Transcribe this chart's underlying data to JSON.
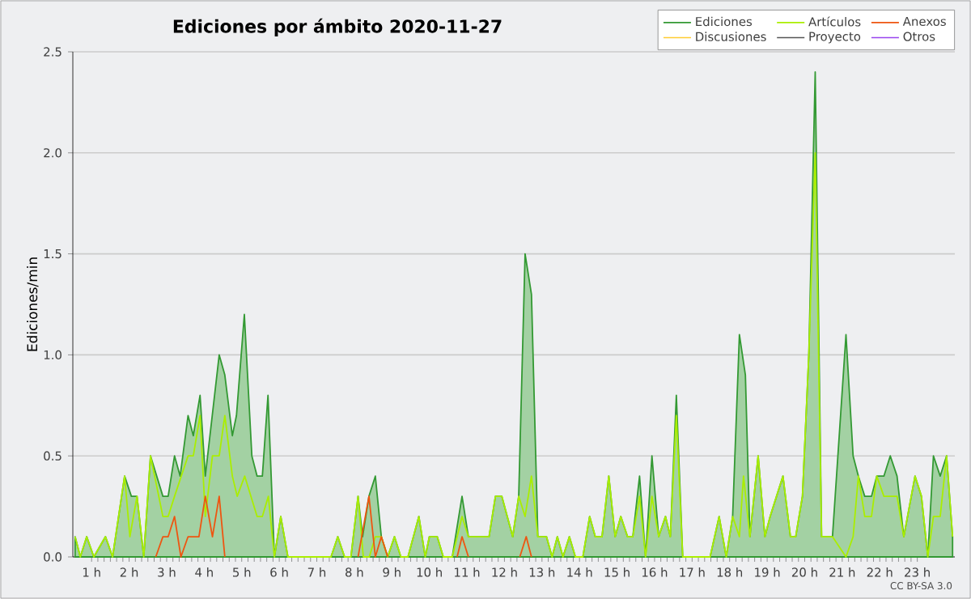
{
  "chart_data": {
    "type": "area",
    "title": "Ediciones por ámbito  2020-11-27",
    "ylabel": "Ediciones/min",
    "annotations": [
      "CC BY-SA 3.0"
    ],
    "xlim": [
      0.5,
      24
    ],
    "ylim": [
      0,
      2.5
    ],
    "xticks": [
      {
        "value": 1,
        "label": "1 h"
      },
      {
        "value": 2,
        "label": "2 h"
      },
      {
        "value": 3,
        "label": "3 h"
      },
      {
        "value": 4,
        "label": "4 h"
      },
      {
        "value": 5,
        "label": "5 h"
      },
      {
        "value": 6,
        "label": "6 h"
      },
      {
        "value": 7,
        "label": "7 h"
      },
      {
        "value": 8,
        "label": "8 h"
      },
      {
        "value": 9,
        "label": "9 h"
      },
      {
        "value": 10,
        "label": "10 h"
      },
      {
        "value": 11,
        "label": "11 h"
      },
      {
        "value": 12,
        "label": "12 h"
      },
      {
        "value": 13,
        "label": "13 h"
      },
      {
        "value": 14,
        "label": "14 h"
      },
      {
        "value": 15,
        "label": "15 h"
      },
      {
        "value": 16,
        "label": "16 h"
      },
      {
        "value": 17,
        "label": "17 h"
      },
      {
        "value": 18,
        "label": "18 h"
      },
      {
        "value": 19,
        "label": "19 h"
      },
      {
        "value": 20,
        "label": "20 h"
      },
      {
        "value": 21,
        "label": "21 h"
      },
      {
        "value": 22,
        "label": "22 h"
      },
      {
        "value": 23,
        "label": "23 h"
      }
    ],
    "yticks": [
      {
        "value": 0,
        "label": "0.0"
      },
      0.5,
      {
        "value": 1,
        "label": "1.0"
      },
      1.5,
      {
        "value": 2,
        "label": "2.0"
      },
      2.5
    ],
    "grid": "y",
    "legend": "top right",
    "series": [
      {
        "name": "Ediciones",
        "color": "#339933",
        "x": [
          0.56,
          0.7,
          0.87,
          1.06,
          1.37,
          1.56,
          1.88,
          2.06,
          2.21,
          2.39,
          2.57,
          2.9,
          3.04,
          3.21,
          3.36,
          3.57,
          3.71,
          3.89,
          4.03,
          4.4,
          4.55,
          4.75,
          4.86,
          5.07,
          5.27,
          5.41,
          5.55,
          5.7,
          5.87,
          6.04,
          6.23,
          7.38,
          7.56,
          7.74,
          7.91,
          8.1,
          8.22,
          8.39,
          8.56,
          8.72,
          8.89,
          9.07,
          9.24,
          9.43,
          9.72,
          9.89,
          10.0,
          10.21,
          10.37,
          10.61,
          10.87,
          11.04,
          11.59,
          11.76,
          11.93,
          12.22,
          12.38,
          12.55,
          12.72,
          12.89,
          13.12,
          13.27,
          13.41,
          13.56,
          13.73,
          13.89,
          14.09,
          14.27,
          14.42,
          14.6,
          14.78,
          14.95,
          15.1,
          15.28,
          15.42,
          15.6,
          15.76,
          15.93,
          16.11,
          16.29,
          16.42,
          16.58,
          16.75,
          17.48,
          17.72,
          17.91,
          18.08,
          18.26,
          18.42,
          18.54,
          18.76,
          18.94,
          19.08,
          19.25,
          19.42,
          19.62,
          19.76,
          19.94,
          20.11,
          20.28,
          20.45,
          20.74,
          21.1,
          21.29,
          21.43,
          21.6,
          21.78,
          21.92,
          22.11,
          22.28,
          22.46,
          22.64,
          22.94,
          23.11,
          23.28,
          23.43,
          23.61,
          23.78,
          23.94
        ],
        "values": [
          0.1,
          0,
          0.1,
          0,
          0.1,
          0,
          0.4,
          0.3,
          0.3,
          0,
          0.5,
          0.3,
          0.3,
          0.5,
          0.4,
          0.7,
          0.6,
          0.8,
          0.4,
          1.0,
          0.9,
          0.6,
          0.7,
          1.2,
          0.5,
          0.4,
          0.4,
          0.8,
          0,
          0.2,
          0,
          0,
          0.1,
          0,
          0,
          0.3,
          0.1,
          0.3,
          0.4,
          0.1,
          0,
          0.1,
          0,
          0,
          0.2,
          0,
          0.1,
          0.1,
          0,
          0,
          0.3,
          0.1,
          0.1,
          0.3,
          0.3,
          0.1,
          0.3,
          1.5,
          1.3,
          0.1,
          0.1,
          0,
          0.1,
          0,
          0.1,
          0,
          0,
          0.2,
          0.1,
          0.1,
          0.4,
          0.1,
          0.2,
          0.1,
          0.1,
          0.4,
          0,
          0.5,
          0.1,
          0.2,
          0.1,
          0.8,
          0,
          0,
          0.2,
          0,
          0.2,
          1.1,
          0.9,
          0.1,
          0.5,
          0.1,
          0.2,
          0.3,
          0.4,
          0.1,
          0.1,
          0.3,
          1.0,
          2.4,
          0.1,
          0.1,
          1.1,
          0.5,
          0.4,
          0.3,
          0.3,
          0.4,
          0.4,
          0.5,
          0.4,
          0.1,
          0.4,
          0.3,
          0,
          0.5,
          0.4,
          0.5,
          0.1
        ]
      },
      {
        "name": "Artículos",
        "type": "line",
        "color": "#aaee00",
        "x": [
          0.56,
          0.7,
          0.87,
          1.06,
          1.37,
          1.56,
          1.88,
          2.02,
          2.21,
          2.39,
          2.57,
          2.9,
          3.04,
          3.21,
          3.57,
          3.71,
          3.89,
          4.03,
          4.22,
          4.4,
          4.55,
          4.75,
          4.88,
          5.08,
          5.41,
          5.55,
          5.71,
          5.87,
          6.04,
          6.23,
          7.38,
          7.56,
          7.74,
          7.91,
          8.1,
          8.24,
          8.4,
          8.56,
          8.72,
          8.89,
          9.07,
          9.24,
          9.43,
          9.72,
          9.89,
          10.0,
          10.21,
          10.37,
          10.61,
          10.87,
          11.04,
          11.59,
          11.76,
          11.93,
          12.22,
          12.38,
          12.55,
          12.72,
          12.89,
          13.12,
          13.27,
          13.41,
          13.56,
          13.73,
          13.89,
          14.09,
          14.27,
          14.42,
          14.6,
          14.78,
          14.95,
          15.1,
          15.28,
          15.42,
          15.6,
          15.76,
          15.93,
          16.11,
          16.29,
          16.42,
          16.58,
          16.75,
          17.48,
          17.72,
          17.91,
          18.08,
          18.26,
          18.37,
          18.54,
          18.76,
          18.94,
          19.08,
          19.25,
          19.42,
          19.62,
          19.76,
          19.94,
          20.11,
          20.28,
          20.45,
          20.74,
          21.1,
          21.29,
          21.43,
          21.6,
          21.78,
          21.92,
          22.11,
          22.46,
          22.64,
          22.94,
          23.11,
          23.28,
          23.43,
          23.61,
          23.78,
          23.94
        ],
        "values": [
          0.1,
          0,
          0.1,
          0,
          0.1,
          0,
          0.4,
          0.1,
          0.3,
          0,
          0.5,
          0.2,
          0.2,
          0.3,
          0.5,
          0.5,
          0.7,
          0.2,
          0.5,
          0.5,
          0.7,
          0.4,
          0.3,
          0.4,
          0.2,
          0.2,
          0.3,
          0,
          0.2,
          0,
          0,
          0.1,
          0,
          0,
          0.3,
          0,
          0,
          0.1,
          0.1,
          0,
          0.1,
          0,
          0,
          0.2,
          0,
          0.1,
          0.1,
          0,
          0,
          0.2,
          0.1,
          0.1,
          0.3,
          0.3,
          0.1,
          0.3,
          0.2,
          0.4,
          0.1,
          0.1,
          0,
          0.1,
          0,
          0.1,
          0,
          0,
          0.2,
          0.1,
          0.1,
          0.4,
          0.1,
          0.2,
          0.1,
          0.1,
          0.3,
          0,
          0.3,
          0.1,
          0.2,
          0.1,
          0.7,
          0,
          0,
          0.2,
          0,
          0.2,
          0.1,
          0.4,
          0.1,
          0.5,
          0.1,
          0.2,
          0.3,
          0.4,
          0.1,
          0.1,
          0.3,
          1.0,
          2.0,
          0.1,
          0.1,
          0,
          0.1,
          0.4,
          0.2,
          0.2,
          0.4,
          0.3,
          0.3,
          0.1,
          0.4,
          0.3,
          0,
          0.2,
          0.2,
          0.5,
          0.1
        ]
      },
      {
        "name": "Anexos",
        "type": "line",
        "color": "#ee5511",
        "x": [
          2.71,
          2.9,
          3.04,
          3.21,
          3.38,
          3.57,
          3.86,
          4.03,
          4.22,
          4.4,
          4.55,
          6.0,
          8.1,
          8.39,
          8.56,
          8.72,
          8.89,
          10.0,
          10.74,
          10.87,
          11.04,
          12.0,
          12.41,
          12.58,
          12.72
        ],
        "values": [
          0,
          0.1,
          0.1,
          0.2,
          0,
          0.1,
          0.1,
          0.3,
          0.1,
          0.3,
          0,
          null,
          0,
          0.3,
          0,
          0.1,
          0,
          null,
          0,
          0.1,
          0,
          null,
          0,
          0.1,
          0
        ]
      },
      {
        "name": "Discusiones",
        "type": "line",
        "color": "#ffcc33"
      },
      {
        "name": "Proyecto",
        "type": "line",
        "color": "#555555"
      },
      {
        "name": "Otros",
        "type": "line",
        "color": "#9944ee"
      }
    ]
  }
}
